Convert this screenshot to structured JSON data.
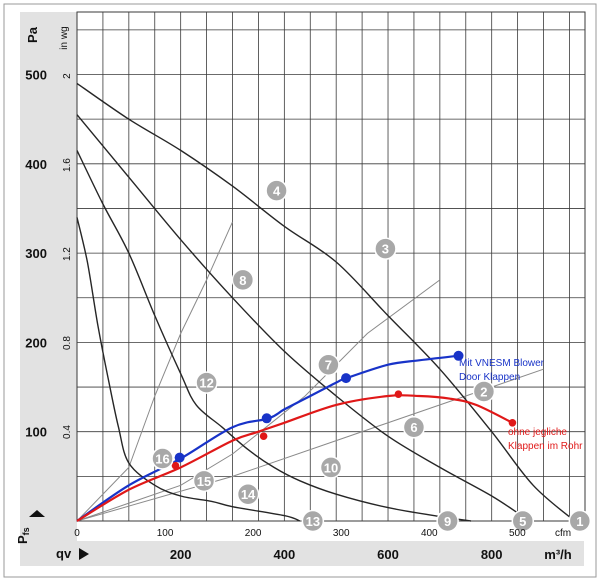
{
  "chart_data": {
    "type": "line",
    "title": "",
    "y_axis": {
      "unit": "Pa",
      "ticks": [
        100,
        200,
        300,
        400,
        500
      ],
      "range": [
        0,
        570
      ]
    },
    "y2_axis": {
      "unit": "in wg",
      "ticks": [
        "0.4",
        "0.8",
        "1.2",
        "1.6",
        "2"
      ]
    },
    "x_axis": {
      "unit": "m³/h",
      "ticks": [
        200,
        400,
        600,
        800
      ],
      "range": [
        0,
        980
      ]
    },
    "x2_axis": {
      "unit": "cfm",
      "ticks": [
        "0",
        "100",
        "200",
        "300",
        "400",
        "500"
      ]
    },
    "ylabel_symbol": "P",
    "ylabel_sub": "fs",
    "xlabel_symbol": "qv",
    "grid": true,
    "fan_curves": [
      {
        "name": "curve-a",
        "points": [
          [
            0,
            340
          ],
          [
            20,
            290
          ],
          [
            40,
            220
          ],
          [
            60,
            160
          ],
          [
            80,
            105
          ],
          [
            100,
            65
          ],
          [
            150,
            40
          ],
          [
            200,
            28
          ],
          [
            260,
            22
          ],
          [
            300,
            16
          ],
          [
            400,
            6
          ],
          [
            430,
            0
          ]
        ]
      },
      {
        "name": "curve-b",
        "points": [
          [
            0,
            415
          ],
          [
            50,
            355
          ],
          [
            100,
            300
          ],
          [
            150,
            230
          ],
          [
            200,
            165
          ],
          [
            230,
            130
          ],
          [
            280,
            105
          ],
          [
            330,
            80
          ],
          [
            380,
            60
          ],
          [
            430,
            45
          ],
          [
            500,
            30
          ],
          [
            600,
            15
          ],
          [
            700,
            5
          ],
          [
            760,
            0
          ]
        ]
      },
      {
        "name": "curve-c",
        "points": [
          [
            0,
            455
          ],
          [
            100,
            385
          ],
          [
            200,
            315
          ],
          [
            300,
            250
          ],
          [
            400,
            190
          ],
          [
            500,
            140
          ],
          [
            600,
            95
          ],
          [
            700,
            60
          ],
          [
            800,
            28
          ],
          [
            860,
            5
          ],
          [
            870,
            0
          ]
        ]
      },
      {
        "name": "curve-d",
        "points": [
          [
            0,
            490
          ],
          [
            100,
            450
          ],
          [
            200,
            415
          ],
          [
            300,
            375
          ],
          [
            400,
            330
          ],
          [
            500,
            290
          ],
          [
            600,
            230
          ],
          [
            700,
            170
          ],
          [
            800,
            100
          ],
          [
            880,
            40
          ],
          [
            960,
            0
          ]
        ]
      }
    ],
    "system_lines": [
      {
        "name": "line-a",
        "points": [
          [
            0,
            0
          ],
          [
            100,
            60
          ],
          [
            150,
            140
          ],
          [
            200,
            210
          ],
          [
            250,
            270
          ],
          [
            300,
            335
          ]
        ]
      },
      {
        "name": "line-b",
        "points": [
          [
            0,
            0
          ],
          [
            200,
            40
          ],
          [
            300,
            75
          ],
          [
            440,
            140
          ],
          [
            560,
            210
          ],
          [
            700,
            270
          ]
        ]
      },
      {
        "name": "line-c",
        "points": [
          [
            0,
            0
          ],
          [
            300,
            50
          ],
          [
            500,
            90
          ],
          [
            700,
            130
          ],
          [
            900,
            170
          ]
        ]
      }
    ],
    "series": [
      {
        "name": "Mit VNESM Blower Door Klappen",
        "color": "#1833c8",
        "points": [
          [
            0,
            0
          ],
          [
            100,
            40
          ],
          [
            200,
            70
          ],
          [
            300,
            105
          ],
          [
            370,
            115
          ],
          [
            400,
            125
          ],
          [
            450,
            140
          ],
          [
            500,
            155
          ],
          [
            520,
            160
          ],
          [
            600,
            175
          ],
          [
            660,
            180
          ],
          [
            736,
            185
          ]
        ],
        "markers": [
          [
            198,
            71
          ],
          [
            366,
            115
          ],
          [
            519,
            160
          ],
          [
            736,
            185
          ]
        ]
      },
      {
        "name": "ohne jegliche Klappen im Rohr",
        "color": "#e01818",
        "points": [
          [
            0,
            0
          ],
          [
            100,
            35
          ],
          [
            200,
            60
          ],
          [
            300,
            90
          ],
          [
            350,
            100
          ],
          [
            400,
            110
          ],
          [
            500,
            130
          ],
          [
            600,
            140
          ],
          [
            660,
            140
          ],
          [
            720,
            137
          ],
          [
            770,
            130
          ],
          [
            840,
            110
          ]
        ],
        "markers": [
          [
            190,
            62
          ],
          [
            360,
            95
          ],
          [
            620,
            142
          ],
          [
            840,
            110
          ]
        ]
      }
    ],
    "annotations": [
      "Mit VNESM Blower",
      "Door Klappen",
      "ohne jegliche",
      "Klappen im Rohr"
    ],
    "point_labels": [
      {
        "label": "1",
        "x": 970,
        "y": 0
      },
      {
        "label": "2",
        "x": 785,
        "y": 145
      },
      {
        "label": "3",
        "x": 595,
        "y": 305
      },
      {
        "label": "4",
        "x": 385,
        "y": 370
      },
      {
        "label": "5",
        "x": 860,
        "y": 0
      },
      {
        "label": "6",
        "x": 650,
        "y": 105
      },
      {
        "label": "7",
        "x": 485,
        "y": 175
      },
      {
        "label": "8",
        "x": 320,
        "y": 270
      },
      {
        "label": "9",
        "x": 715,
        "y": 0
      },
      {
        "label": "10",
        "x": 490,
        "y": 60
      },
      {
        "label": "12",
        "x": 250,
        "y": 155
      },
      {
        "label": "13",
        "x": 455,
        "y": 0
      },
      {
        "label": "14",
        "x": 330,
        "y": 30
      },
      {
        "label": "15",
        "x": 245,
        "y": 45
      },
      {
        "label": "16",
        "x": 165,
        "y": 70
      }
    ]
  }
}
